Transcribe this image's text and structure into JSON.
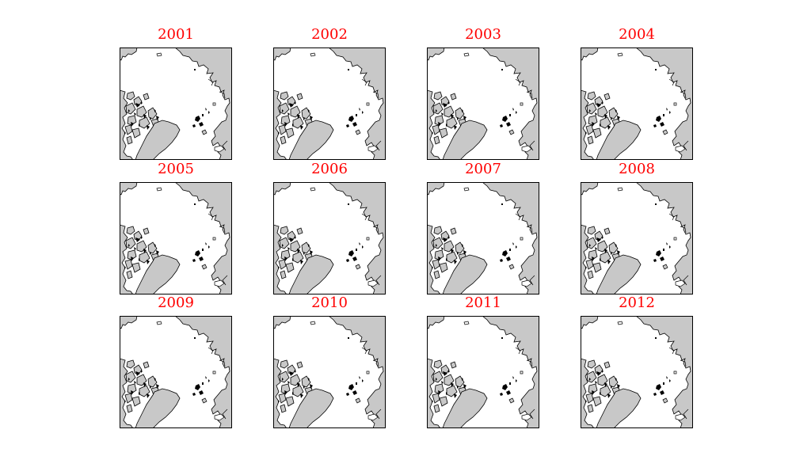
{
  "figure": {
    "title_color": "#ff0000",
    "land_color": "#c8c8c8",
    "ocean_color": "#ffffff",
    "coastline_color": "#000000",
    "panels": [
      {
        "title": "2001"
      },
      {
        "title": "2002"
      },
      {
        "title": "2003"
      },
      {
        "title": "2004"
      },
      {
        "title": "2005"
      },
      {
        "title": "2006"
      },
      {
        "title": "2007"
      },
      {
        "title": "2008"
      },
      {
        "title": "2009"
      },
      {
        "title": "2010"
      },
      {
        "title": "2011"
      },
      {
        "title": "2012"
      }
    ]
  }
}
